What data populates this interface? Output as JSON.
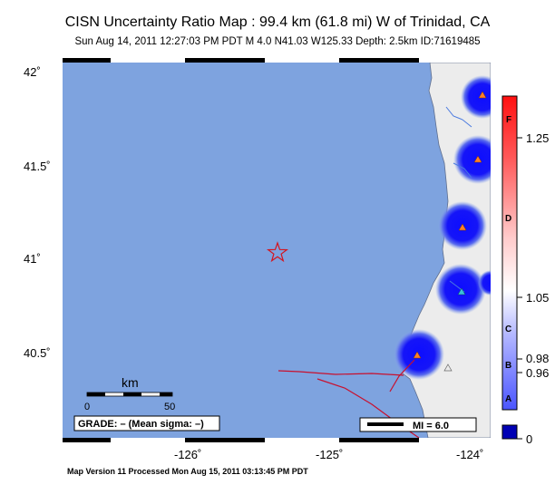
{
  "title": "CISN Uncertainty Ratio Map : 99.4 km (61.8 mi) W of Trinidad, CA",
  "subtitle": "Sun Aug 14, 2011 12:27:03 PM PDT   M 4.0   N41.03 W125.33   Depth: 2.5km   ID:71619485",
  "footer": "Map Version 11 Processed Mon Aug 15, 2011 03:13:45 PM PDT",
  "map": {
    "lat_ticks": [
      "42˚",
      "41.5˚",
      "41˚",
      "40.5˚"
    ],
    "lon_ticks": [
      "-126˚",
      "-125˚",
      "-124˚"
    ],
    "epicenter": {
      "lat": 41.03,
      "lon": -125.33,
      "symbol": "star-icon"
    },
    "colors": {
      "ocean": "#7ea3df",
      "land": "#ececec",
      "fault": "#c8102e",
      "station_core": "#1010ff"
    }
  },
  "scale_bar": {
    "unit": "km",
    "labels": [
      "0",
      "50"
    ]
  },
  "grade_box": {
    "text": "GRADE: – (Mean sigma: –)"
  },
  "mi_legend": {
    "text": "MI = 6.0"
  },
  "colorbar": {
    "letters": [
      "F",
      "D",
      "C",
      "B",
      "A"
    ],
    "values": [
      "1.25",
      "1.05",
      "0.98",
      "0.96",
      "0"
    ]
  }
}
